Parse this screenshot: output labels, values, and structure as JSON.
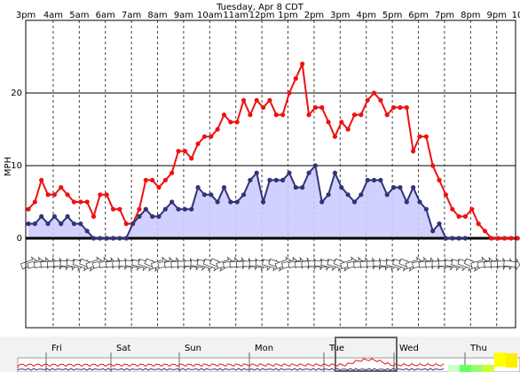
{
  "chart_data": {
    "type": "line",
    "title": "Tuesday, Apr 8 CDT",
    "ylabel": "MPH",
    "xlabel": "",
    "ylim": [
      -9,
      30
    ],
    "yticks": [
      0,
      10,
      20
    ],
    "x_tick_labels": [
      "3pm",
      "4am",
      "5am",
      "6am",
      "7am",
      "8am",
      "9am",
      "10am",
      "11am",
      "12pm",
      "1pm",
      "2pm",
      "3pm",
      "4pm",
      "5pm",
      "6pm",
      "7pm",
      "8pm",
      "9pm",
      "10"
    ],
    "x_hours": [
      -0.1,
      0.95,
      1.95,
      2.95,
      3.95,
      4.95,
      5.95,
      6.95,
      7.95,
      8.95,
      9.95,
      10.95,
      11.95,
      12.95,
      13.95,
      14.95,
      15.95,
      16.95,
      17.95,
      18.95
    ],
    "grid": true,
    "series": [
      {
        "name": "",
        "color": "#ee1111",
        "x": [
          0,
          0.25,
          0.5,
          0.75,
          1,
          1.25,
          1.5,
          1.75,
          2,
          2.25,
          2.5,
          2.75,
          3,
          3.25,
          3.5,
          3.75,
          4,
          4.25,
          4.5,
          4.75,
          5,
          5.25,
          5.5,
          5.75,
          6,
          6.25,
          6.5,
          6.75,
          7,
          7.25,
          7.5,
          7.75,
          8,
          8.25,
          8.5,
          8.75,
          9,
          9.25,
          9.5,
          9.75,
          10,
          10.25,
          10.5,
          10.75,
          11,
          11.25,
          11.5,
          11.75,
          12,
          12.25,
          12.5,
          12.75,
          13,
          13.25,
          13.5,
          13.75,
          14,
          14.25,
          14.5,
          14.75,
          15,
          15.25,
          15.5,
          15.75,
          16,
          16.25,
          16.5,
          16.75,
          17,
          17.25,
          17.5,
          17.75,
          18,
          18.25,
          18.5,
          18.75
        ],
        "values": [
          4,
          5,
          8,
          6,
          6,
          7,
          6,
          5,
          5,
          5,
          3,
          6,
          6,
          4,
          4,
          2,
          2,
          4,
          8,
          8,
          7,
          8,
          9,
          12,
          12,
          11,
          13,
          14,
          14,
          15,
          17,
          16,
          16,
          19,
          17,
          19,
          18,
          19,
          17,
          17,
          20,
          22,
          24,
          17,
          18,
          18,
          16,
          14,
          16,
          15,
          17,
          17,
          19,
          20,
          19,
          17,
          18,
          18,
          18,
          12,
          14,
          14,
          10,
          8,
          6,
          4,
          3,
          3,
          4,
          2,
          1,
          0,
          0,
          0,
          0,
          0
        ]
      },
      {
        "name": "",
        "color": "#333377",
        "x": [
          0,
          0.25,
          0.5,
          0.75,
          1,
          1.25,
          1.5,
          1.75,
          2,
          2.25,
          2.5,
          2.75,
          3,
          3.25,
          3.5,
          3.75,
          4,
          4.25,
          4.5,
          4.75,
          5,
          5.25,
          5.5,
          5.75,
          6,
          6.25,
          6.5,
          6.75,
          7,
          7.25,
          7.5,
          7.75,
          8,
          8.25,
          8.5,
          8.75,
          9,
          9.25,
          9.5,
          9.75,
          10,
          10.25,
          10.5,
          10.75,
          11,
          11.25,
          11.5,
          11.75,
          12,
          12.25,
          12.5,
          12.75,
          13,
          13.25,
          13.5,
          13.75,
          14,
          14.25,
          14.5,
          14.75,
          15,
          15.25,
          15.5,
          15.75,
          16,
          16.25,
          16.5,
          16.75
        ],
        "values": [
          2,
          2,
          3,
          2,
          3,
          2,
          3,
          2,
          2,
          1,
          0,
          0,
          0,
          0,
          0,
          0,
          2,
          3,
          4,
          3,
          3,
          4,
          5,
          4,
          4,
          4,
          7,
          6,
          6,
          5,
          7,
          5,
          5,
          6,
          8,
          9,
          5,
          8,
          8,
          8,
          9,
          7,
          7,
          9,
          10,
          5,
          6,
          9,
          7,
          6,
          5,
          6,
          8,
          8,
          8,
          6,
          7,
          7,
          5,
          7,
          5,
          4,
          1,
          2,
          0,
          0,
          0,
          0
        ]
      }
    ],
    "zero_line": 0,
    "timeline": {
      "labels": [
        "Fri",
        "Sat",
        "Sun",
        "Mon",
        "Tue",
        "Wed",
        "Thu"
      ]
    }
  }
}
